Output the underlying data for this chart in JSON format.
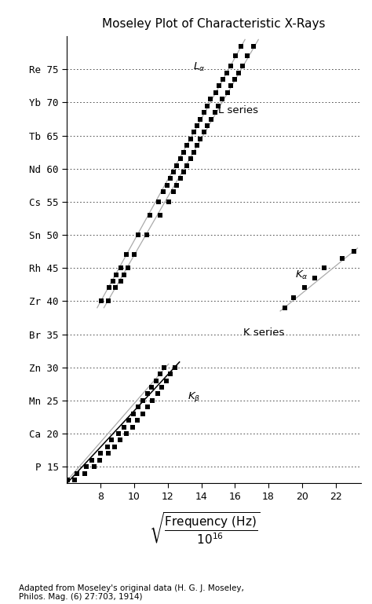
{
  "title": "Moseley Plot of Characteristic X-Rays",
  "caption": "Adapted from Moseley's original data (H. G. J. Moseley,\nPhilos. Mag. (6) 27:703, 1914)",
  "ytick_elements": [
    "P",
    "Ca",
    "Mn",
    "Zn",
    "Br",
    "Zr",
    "Rh",
    "Sn",
    "Cs",
    "Nd",
    "Tb",
    "Yb",
    "Re"
  ],
  "ytick_values": [
    15,
    20,
    25,
    30,
    35,
    40,
    45,
    50,
    55,
    60,
    65,
    70,
    75
  ],
  "xtick_values": [
    8,
    10,
    12,
    14,
    16,
    18,
    20,
    22
  ],
  "xlim": [
    6.0,
    23.5
  ],
  "ylim": [
    12.5,
    80.0
  ],
  "K_beta_data": [
    [
      6.45,
      13.0
    ],
    [
      7.05,
      14.0
    ],
    [
      7.6,
      15.0
    ],
    [
      7.95,
      16.0
    ],
    [
      8.45,
      17.0
    ],
    [
      8.85,
      18.0
    ],
    [
      9.15,
      19.0
    ],
    [
      9.55,
      20.0
    ],
    [
      9.9,
      21.0
    ],
    [
      10.2,
      22.0
    ],
    [
      10.5,
      23.0
    ],
    [
      10.8,
      24.0
    ],
    [
      11.1,
      25.0
    ],
    [
      11.4,
      26.0
    ],
    [
      11.65,
      27.0
    ],
    [
      11.9,
      28.0
    ],
    [
      12.15,
      29.0
    ],
    [
      12.45,
      30.0
    ]
  ],
  "K_alpha_data": [
    [
      6.05,
      13.0
    ],
    [
      6.6,
      14.0
    ],
    [
      7.15,
      15.0
    ],
    [
      7.5,
      16.0
    ],
    [
      8.0,
      17.0
    ],
    [
      8.4,
      18.0
    ],
    [
      8.65,
      19.0
    ],
    [
      9.05,
      20.0
    ],
    [
      9.4,
      21.0
    ],
    [
      9.7,
      22.0
    ],
    [
      9.95,
      23.0
    ],
    [
      10.25,
      24.0
    ],
    [
      10.5,
      25.0
    ],
    [
      10.8,
      26.0
    ],
    [
      11.05,
      27.0
    ],
    [
      11.3,
      28.0
    ],
    [
      11.55,
      29.0
    ],
    [
      11.8,
      30.0
    ],
    [
      19.0,
      39.0
    ],
    [
      19.5,
      40.5
    ],
    [
      20.15,
      42.0
    ],
    [
      20.75,
      43.5
    ],
    [
      21.3,
      45.0
    ],
    [
      22.4,
      46.5
    ],
    [
      23.1,
      47.5
    ]
  ],
  "L_alpha_data": [
    [
      8.05,
      40.0
    ],
    [
      8.5,
      42.0
    ],
    [
      8.75,
      43.0
    ],
    [
      8.95,
      44.0
    ],
    [
      9.2,
      45.0
    ],
    [
      9.55,
      47.0
    ],
    [
      10.25,
      50.0
    ],
    [
      10.95,
      53.0
    ],
    [
      11.45,
      55.0
    ],
    [
      11.75,
      56.5
    ],
    [
      11.95,
      57.5
    ],
    [
      12.15,
      58.5
    ],
    [
      12.35,
      59.5
    ],
    [
      12.55,
      60.5
    ],
    [
      12.75,
      61.5
    ],
    [
      12.95,
      62.5
    ],
    [
      13.15,
      63.5
    ],
    [
      13.35,
      64.5
    ],
    [
      13.55,
      65.5
    ],
    [
      13.75,
      66.5
    ],
    [
      13.95,
      67.5
    ],
    [
      14.15,
      68.5
    ],
    [
      14.35,
      69.5
    ],
    [
      14.55,
      70.5
    ],
    [
      14.85,
      71.5
    ],
    [
      15.05,
      72.5
    ],
    [
      15.3,
      73.5
    ],
    [
      15.5,
      74.5
    ],
    [
      15.75,
      75.5
    ],
    [
      16.05,
      77.0
    ],
    [
      16.35,
      78.5
    ]
  ],
  "L_beta_data": [
    [
      8.45,
      40.0
    ],
    [
      8.9,
      42.0
    ],
    [
      9.2,
      43.0
    ],
    [
      9.4,
      44.0
    ],
    [
      9.65,
      45.0
    ],
    [
      10.0,
      47.0
    ],
    [
      10.75,
      50.0
    ],
    [
      11.55,
      53.0
    ],
    [
      12.05,
      55.0
    ],
    [
      12.35,
      56.5
    ],
    [
      12.55,
      57.5
    ],
    [
      12.75,
      58.5
    ],
    [
      12.95,
      59.5
    ],
    [
      13.15,
      60.5
    ],
    [
      13.35,
      61.5
    ],
    [
      13.55,
      62.5
    ],
    [
      13.75,
      63.5
    ],
    [
      13.95,
      64.5
    ],
    [
      14.15,
      65.5
    ],
    [
      14.35,
      66.5
    ],
    [
      14.6,
      67.5
    ],
    [
      14.8,
      68.5
    ],
    [
      15.0,
      69.5
    ],
    [
      15.25,
      70.5
    ],
    [
      15.55,
      71.5
    ],
    [
      15.75,
      72.5
    ],
    [
      16.0,
      73.5
    ],
    [
      16.2,
      74.5
    ],
    [
      16.45,
      75.5
    ],
    [
      16.75,
      77.0
    ],
    [
      17.1,
      78.5
    ]
  ],
  "K_beta_line": [
    [
      6.0,
      12.5
    ],
    [
      12.7,
      30.8
    ]
  ],
  "K_alpha_line_lower": [
    [
      5.7,
      12.0
    ],
    [
      12.05,
      30.5
    ]
  ],
  "K_alpha_line_upper": [
    [
      18.7,
      38.5
    ],
    [
      23.3,
      48.0
    ]
  ],
  "L_alpha_line": [
    [
      7.8,
      39.0
    ],
    [
      16.6,
      79.5
    ]
  ],
  "L_beta_line": [
    [
      8.2,
      39.0
    ],
    [
      17.4,
      79.5
    ]
  ],
  "ann_Lalpha_x": 13.5,
  "ann_Lalpha_y": 74.5,
  "ann_Lseries_x": 15.0,
  "ann_Lseries_y": 68.0,
  "ann_Kalpha_x": 19.6,
  "ann_Kalpha_y": 43.0,
  "ann_Kseries_x": 16.5,
  "ann_Kseries_y": 34.5,
  "ann_Kbeta_x": 13.2,
  "ann_Kbeta_y": 24.5,
  "marker_size": 4.0,
  "background_color": "#ffffff"
}
